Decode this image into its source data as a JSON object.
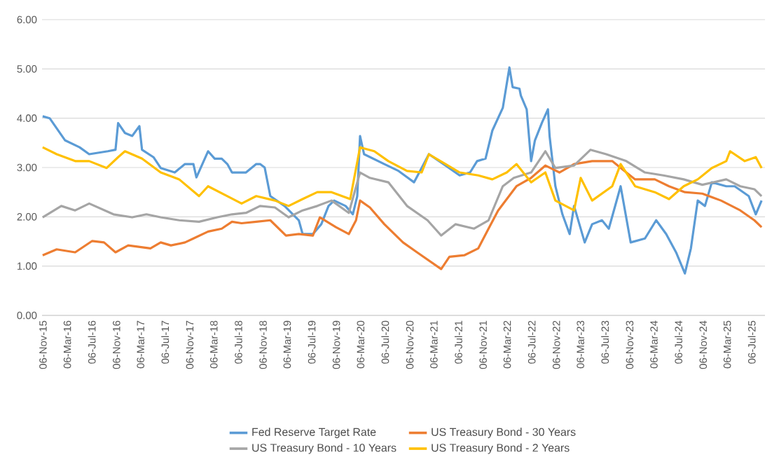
{
  "chart_data": {
    "type": "line",
    "xlim": [
      "2015-11-01",
      "2025-09-10"
    ],
    "xticks": [
      {
        "value": "2015-11-06",
        "label": "06-Nov-15"
      },
      {
        "value": "2016-03-06",
        "label": "06-Mar-16"
      },
      {
        "value": "2016-07-06",
        "label": "06-Jul-16"
      },
      {
        "value": "2016-11-06",
        "label": "06-Nov-16"
      },
      {
        "value": "2017-03-06",
        "label": "06-Mar-17"
      },
      {
        "value": "2017-07-06",
        "label": "06-Jul-17"
      },
      {
        "value": "2017-11-06",
        "label": "06-Nov-17"
      },
      {
        "value": "2018-03-06",
        "label": "06-Mar-18"
      },
      {
        "value": "2018-07-06",
        "label": "06-Jul-18"
      },
      {
        "value": "2018-11-06",
        "label": "06-Nov-18"
      },
      {
        "value": "2019-03-06",
        "label": "06-Mar-19"
      },
      {
        "value": "2019-07-06",
        "label": "06-Jul-19"
      },
      {
        "value": "2019-11-06",
        "label": "06-Nov-19"
      },
      {
        "value": "2020-03-06",
        "label": "06-Mar-20"
      },
      {
        "value": "2020-07-06",
        "label": "06-Jul-20"
      },
      {
        "value": "2020-11-06",
        "label": "06-Nov-20"
      },
      {
        "value": "2021-03-06",
        "label": "06-Mar-21"
      },
      {
        "value": "2021-07-06",
        "label": "06-Jul-21"
      },
      {
        "value": "2021-11-06",
        "label": "06-Nov-21"
      },
      {
        "value": "2022-03-06",
        "label": "06-Mar-22"
      },
      {
        "value": "2022-07-06",
        "label": "06-Jul-22"
      },
      {
        "value": "2022-11-06",
        "label": "06-Nov-22"
      },
      {
        "value": "2023-03-06",
        "label": "06-Mar-23"
      },
      {
        "value": "2023-07-06",
        "label": "06-Jul-23"
      },
      {
        "value": "2023-11-06",
        "label": "06-Nov-23"
      },
      {
        "value": "2024-03-06",
        "label": "06-Mar-24"
      },
      {
        "value": "2024-07-06",
        "label": "06-Jul-24"
      },
      {
        "value": "2024-11-06",
        "label": "06-Nov-24"
      },
      {
        "value": "2025-03-06",
        "label": "06-Mar-25"
      },
      {
        "value": "2025-07-06",
        "label": "06-Jul-25"
      }
    ],
    "ylim": [
      0,
      6
    ],
    "yticks": [
      {
        "value": 0,
        "label": "0.00"
      },
      {
        "value": 1,
        "label": "1.00"
      },
      {
        "value": 2,
        "label": "2.00"
      },
      {
        "value": 3,
        "label": "3.00"
      },
      {
        "value": 4,
        "label": "4.00"
      },
      {
        "value": 5,
        "label": "5.00"
      },
      {
        "value": 6,
        "label": "6.00"
      }
    ],
    "grid": "y",
    "legend": "bottom",
    "marker": "none",
    "line_style": "solid",
    "series": [
      {
        "name": "Fed Reserve Target Rate",
        "color": "#5b9bd5",
        "x": [
          "2015-11-04",
          "2015-12-09",
          "2016-02-24",
          "2016-05-06",
          "2016-06-23",
          "2016-09-24",
          "2016-11-01",
          "2016-11-14",
          "2016-12-18",
          "2017-01-23",
          "2017-02-28",
          "2017-03-13",
          "2017-05-09",
          "2017-06-14",
          "2017-08-23",
          "2017-10-13",
          "2017-11-24",
          "2017-12-09",
          "2018-02-05",
          "2018-03-10",
          "2018-04-14",
          "2018-05-12",
          "2018-06-04",
          "2018-08-13",
          "2018-10-03",
          "2018-10-22",
          "2018-11-14",
          "2018-12-12",
          "2019-02-21",
          "2019-05-03",
          "2019-05-22",
          "2019-07-12",
          "2019-08-23",
          "2019-09-28",
          "2019-10-26",
          "2019-12-22",
          "2020-01-27",
          "2020-02-18",
          "2020-03-03",
          "2020-03-23",
          "2020-07-02",
          "2020-09-11",
          "2020-11-27",
          "2021-02-09",
          "2021-05-03",
          "2021-07-12",
          "2021-09-02",
          "2021-10-07",
          "2021-11-18",
          "2021-12-22",
          "2022-02-12",
          "2022-03-17",
          "2022-04-02",
          "2022-05-06",
          "2022-05-13",
          "2022-06-11",
          "2022-07-03",
          "2022-07-22",
          "2022-08-27",
          "2022-09-25",
          "2022-10-03",
          "2022-11-01",
          "2022-12-06",
          "2023-01-11",
          "2023-02-02",
          "2023-03-27",
          "2023-05-03",
          "2023-06-21",
          "2023-07-25",
          "2023-09-22",
          "2023-11-11",
          "2024-01-21",
          "2024-03-17",
          "2024-05-06",
          "2024-06-24",
          "2024-08-07",
          "2024-09-06",
          "2024-10-10",
          "2024-11-15",
          "2024-12-19",
          "2025-03-01",
          "2025-04-12",
          "2025-06-21",
          "2025-07-26",
          "2025-08-24"
        ],
        "values": [
          4.04,
          4.0,
          3.55,
          3.41,
          3.27,
          3.33,
          3.36,
          3.9,
          3.7,
          3.64,
          3.84,
          3.36,
          3.21,
          2.99,
          2.9,
          3.07,
          3.07,
          2.8,
          3.33,
          3.18,
          3.18,
          3.07,
          2.9,
          2.9,
          3.07,
          3.07,
          3.0,
          2.42,
          2.22,
          1.93,
          1.65,
          1.65,
          1.85,
          2.22,
          2.33,
          2.22,
          2.05,
          2.42,
          3.64,
          3.27,
          3.07,
          2.93,
          2.7,
          3.27,
          3.04,
          2.84,
          2.9,
          3.13,
          3.18,
          3.75,
          4.21,
          5.03,
          4.63,
          4.6,
          4.46,
          4.18,
          3.13,
          3.55,
          3.92,
          4.18,
          3.64,
          2.62,
          2.05,
          1.65,
          2.22,
          1.48,
          1.85,
          1.93,
          1.76,
          2.62,
          1.48,
          1.56,
          1.93,
          1.65,
          1.28,
          0.85,
          1.36,
          2.33,
          2.22,
          2.7,
          2.62,
          2.62,
          2.42,
          2.05,
          2.33
        ]
      },
      {
        "name": "US Treasury Bond - 30 Years",
        "color": "#ed7d31",
        "x": [
          "2015-11-04",
          "2016-01-13",
          "2016-04-14",
          "2016-07-08",
          "2016-09-05",
          "2016-11-01",
          "2017-01-03",
          "2017-04-24",
          "2017-06-14",
          "2017-08-04",
          "2017-10-13",
          "2017-11-24",
          "2018-02-05",
          "2018-04-14",
          "2018-06-04",
          "2018-07-22",
          "2018-10-03",
          "2018-12-12",
          "2019-02-28",
          "2019-05-03",
          "2019-07-12",
          "2019-08-16",
          "2019-11-04",
          "2020-01-07",
          "2020-02-12",
          "2020-03-03",
          "2020-04-21",
          "2020-07-02",
          "2020-10-03",
          "2020-12-12",
          "2021-04-11",
          "2021-05-22",
          "2021-08-04",
          "2021-10-13",
          "2021-12-03",
          "2022-01-20",
          "2022-04-21",
          "2022-07-03",
          "2022-09-12",
          "2022-11-21",
          "2023-02-02",
          "2023-05-03",
          "2023-08-11",
          "2023-10-20",
          "2023-12-03",
          "2024-03-10",
          "2024-05-20",
          "2024-08-07",
          "2024-11-02",
          "2025-02-03",
          "2025-05-10",
          "2025-07-19",
          "2025-08-24"
        ],
        "values": [
          1.22,
          1.34,
          1.28,
          1.51,
          1.48,
          1.28,
          1.42,
          1.36,
          1.48,
          1.42,
          1.48,
          1.56,
          1.7,
          1.76,
          1.9,
          1.87,
          1.9,
          1.93,
          1.62,
          1.65,
          1.62,
          1.99,
          1.79,
          1.65,
          1.93,
          2.33,
          2.19,
          1.85,
          1.48,
          1.28,
          0.94,
          1.19,
          1.22,
          1.36,
          1.76,
          2.13,
          2.62,
          2.79,
          3.04,
          2.9,
          3.07,
          3.13,
          3.13,
          2.9,
          2.76,
          2.76,
          2.62,
          2.5,
          2.47,
          2.33,
          2.13,
          1.93,
          1.79
        ]
      },
      {
        "name": "US Treasury Bond - 10 Years",
        "color": "#a5a5a5",
        "x": [
          "2015-11-04",
          "2016-02-05",
          "2016-04-14",
          "2016-06-23",
          "2016-10-22",
          "2017-01-23",
          "2017-04-04",
          "2017-06-14",
          "2017-09-14",
          "2017-12-22",
          "2018-03-23",
          "2018-06-04",
          "2018-08-13",
          "2018-10-22",
          "2019-01-04",
          "2019-03-13",
          "2019-05-22",
          "2019-08-03",
          "2019-10-13",
          "2020-01-07",
          "2020-03-03",
          "2020-04-21",
          "2020-07-22",
          "2020-10-23",
          "2021-02-02",
          "2021-04-11",
          "2021-06-21",
          "2021-09-22",
          "2021-12-03",
          "2022-02-12",
          "2022-04-08",
          "2022-07-03",
          "2022-09-12",
          "2022-11-01",
          "2023-02-02",
          "2023-04-25",
          "2023-07-12",
          "2023-10-20",
          "2024-01-21",
          "2024-04-22",
          "2024-08-01",
          "2024-11-02",
          "2025-03-01",
          "2025-05-10",
          "2025-07-19",
          "2025-08-24"
        ],
        "values": [
          1.99,
          2.22,
          2.13,
          2.27,
          2.05,
          1.99,
          2.05,
          1.99,
          1.93,
          1.9,
          1.99,
          2.05,
          2.08,
          2.22,
          2.19,
          1.99,
          2.13,
          2.22,
          2.33,
          2.08,
          2.9,
          2.79,
          2.7,
          2.22,
          1.93,
          1.62,
          1.85,
          1.76,
          1.93,
          2.62,
          2.79,
          2.9,
          3.33,
          2.99,
          3.04,
          3.36,
          3.27,
          3.13,
          2.9,
          2.84,
          2.76,
          2.65,
          2.76,
          2.62,
          2.56,
          2.42
        ]
      },
      {
        "name": "US Treasury Bond - 2 Years",
        "color": "#ffc000",
        "x": [
          "2015-11-04",
          "2016-01-13",
          "2016-04-14",
          "2016-06-23",
          "2016-09-18",
          "2016-11-14",
          "2016-12-18",
          "2017-03-13",
          "2017-06-14",
          "2017-09-14",
          "2017-12-22",
          "2018-02-05",
          "2018-05-12",
          "2018-07-22",
          "2018-10-03",
          "2019-01-04",
          "2019-03-13",
          "2019-05-22",
          "2019-08-03",
          "2019-10-13",
          "2020-01-14",
          "2020-03-03",
          "2020-05-13",
          "2020-07-22",
          "2020-10-23",
          "2021-01-04",
          "2021-02-09",
          "2021-05-03",
          "2021-07-12",
          "2021-10-13",
          "2021-12-22",
          "2022-03-04",
          "2022-04-21",
          "2022-07-03",
          "2022-09-12",
          "2022-11-01",
          "2023-02-02",
          "2023-03-07",
          "2023-05-03",
          "2023-08-11",
          "2023-09-22",
          "2023-12-03",
          "2024-03-10",
          "2024-05-20",
          "2024-08-01",
          "2024-10-10",
          "2024-12-19",
          "2025-03-01",
          "2025-03-20",
          "2025-06-01",
          "2025-07-26",
          "2025-08-24"
        ],
        "values": [
          3.41,
          3.27,
          3.13,
          3.13,
          2.99,
          3.21,
          3.33,
          3.18,
          2.9,
          2.76,
          2.42,
          2.62,
          2.42,
          2.27,
          2.42,
          2.33,
          2.22,
          2.36,
          2.5,
          2.5,
          2.36,
          3.41,
          3.33,
          3.13,
          2.93,
          2.9,
          3.27,
          3.07,
          2.9,
          2.84,
          2.76,
          2.9,
          3.07,
          2.7,
          2.9,
          2.33,
          2.13,
          2.79,
          2.33,
          2.62,
          3.07,
          2.62,
          2.5,
          2.36,
          2.62,
          2.76,
          2.99,
          3.13,
          3.33,
          3.13,
          3.21,
          2.99
        ]
      }
    ]
  }
}
